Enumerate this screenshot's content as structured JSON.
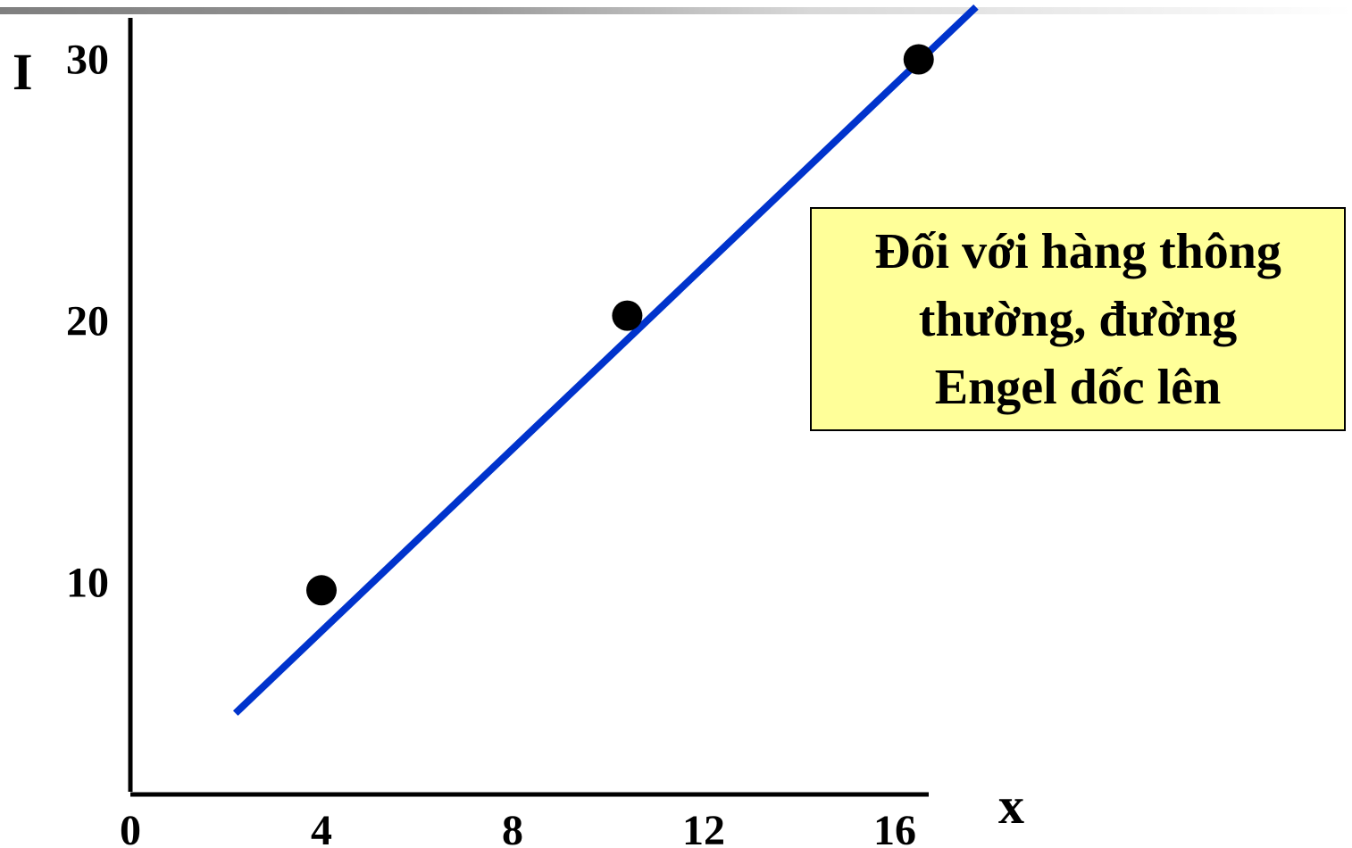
{
  "chart_data": {
    "type": "line",
    "title": "",
    "xlabel": "x",
    "ylabel": "I",
    "xlim": [
      0,
      17
    ],
    "ylim": [
      0,
      30
    ],
    "x_ticks": [
      "0",
      "4",
      "8",
      "12",
      "16"
    ],
    "y_ticks": [
      "10",
      "20",
      "30"
    ],
    "grid": false,
    "legend": "none",
    "series": [
      {
        "line_color": "#0033cc",
        "line": [
          [
            2.2,
            5.0
          ],
          [
            17.7,
            32.0
          ]
        ],
        "points": [
          [
            4,
            9.7
          ],
          [
            10.4,
            20.2
          ],
          [
            16.5,
            30
          ]
        ]
      }
    ],
    "annotation": {
      "lines": [
        "Đối với hàng thông",
        "thường, đường",
        "Engel dốc lên"
      ],
      "background": "#ffff99"
    }
  }
}
